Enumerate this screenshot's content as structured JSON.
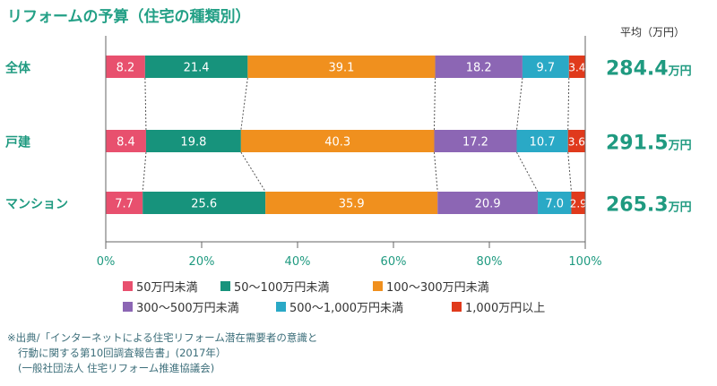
{
  "chart_data": {
    "type": "bar",
    "orientation": "horizontal",
    "stacked": true,
    "title": "リフォームの予算（住宅の種類別）",
    "categories": [
      "全体",
      "戸建",
      "マンション"
    ],
    "series": [
      {
        "name": "50万円未満",
        "color": "#e8506e",
        "values": [
          8.2,
          8.4,
          7.7
        ],
        "labels": [
          "8.2",
          "8.4",
          "7.7"
        ]
      },
      {
        "name": "50〜100万円未満",
        "color": "#17937c",
        "values": [
          21.4,
          19.8,
          25.6
        ],
        "labels": [
          "21.4",
          "19.8",
          "25.6"
        ]
      },
      {
        "name": "100〜300万円未満",
        "color": "#f0901e",
        "values": [
          39.1,
          40.3,
          35.9
        ],
        "labels": [
          "39.1",
          "40.3",
          "35.9"
        ]
      },
      {
        "name": "300〜500万円未満",
        "color": "#8c66b4",
        "values": [
          18.2,
          17.2,
          20.9
        ],
        "labels": [
          "18.2",
          "17.2",
          "20.9"
        ]
      },
      {
        "name": "500〜1,000万円未満",
        "color": "#2aa9c6",
        "values": [
          9.7,
          10.7,
          7.0
        ],
        "labels": [
          "9.7",
          "10.7",
          "7.0"
        ]
      },
      {
        "name": "1,000万円以上",
        "color": "#e03a1c",
        "values": [
          3.4,
          3.6,
          2.9
        ],
        "labels": [
          "3.4",
          "3.6",
          "2.9"
        ]
      }
    ],
    "xlim": [
      0,
      100
    ],
    "xticks": [
      "0%",
      "20%",
      "40%",
      "60%",
      "80%",
      "100%"
    ],
    "average": {
      "header": "平均（万円）",
      "unit": "万円",
      "values": [
        "284.4",
        "291.5",
        "265.3"
      ],
      "color": "#1f9a80"
    },
    "legend_position": "bottom"
  },
  "source": {
    "line1": "※出典/「インターネットによる住宅リフォーム潜在需要者の意識と",
    "line2": "行動に関する第10回調査報告書」(2017年）",
    "line3": "(一般社団法人 住宅リフォーム推進協議会)"
  }
}
